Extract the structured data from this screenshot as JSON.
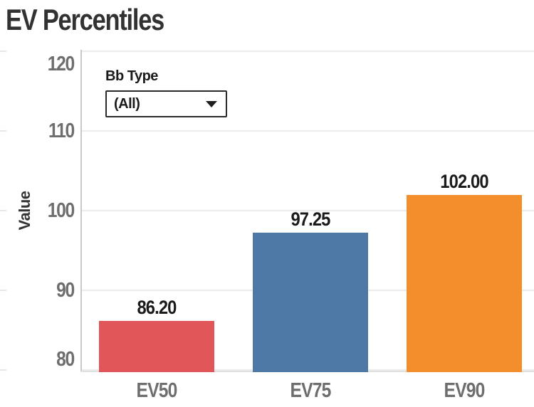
{
  "page": {
    "title": "EV Percentiles"
  },
  "filter": {
    "label": "Bb Type",
    "value": "(All)",
    "icon": "triangle-down-icon"
  },
  "chart_data": {
    "type": "bar",
    "title": "EV Percentiles",
    "categories": [
      "EV50",
      "EV75",
      "EV90"
    ],
    "values": [
      86.2,
      97.25,
      102.0
    ],
    "value_labels": [
      "86.20",
      "97.25",
      "102.00"
    ],
    "bar_colors": [
      "#e15759",
      "#4e79a7",
      "#f28e2b"
    ],
    "xlabel": "",
    "ylabel": "Value",
    "yticks": [
      80,
      90,
      100,
      110,
      120
    ],
    "ytick_labels": [
      "80",
      "90",
      "100",
      "110",
      "120"
    ],
    "ylim": [
      79.75,
      120.15
    ],
    "grid": true,
    "legend": false,
    "colors": {
      "title_text": "#323232",
      "tick_text": "#6e6e6e",
      "value_label_text": "#1a1a1a",
      "gridline": "#ebebeb",
      "axis_line": "#c9c9c9"
    }
  }
}
